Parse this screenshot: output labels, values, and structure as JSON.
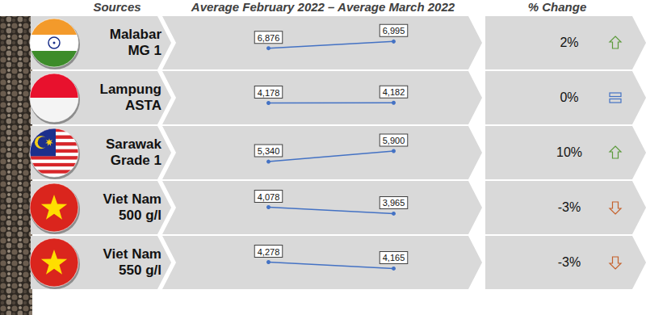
{
  "header": {
    "sources": "Sources",
    "period": "Average February 2022 – Average March 2022",
    "change": "% Change"
  },
  "chart_data": [
    {
      "type": "line",
      "title": "Malabar\nMG 1",
      "values": [
        6876,
        6995
      ],
      "value_labels": [
        "6,876",
        "6,995"
      ],
      "ylim": [
        6700,
        7100
      ],
      "color": "#4472c4",
      "data_labels": true,
      "tick_labels": false,
      "change": 2,
      "change_label": "2%"
    },
    {
      "type": "line",
      "title": "Lampung\nASTA",
      "values": [
        4178,
        4182
      ],
      "value_labels": [
        "4,178",
        "4,182"
      ],
      "ylim": [
        4000,
        4400
      ],
      "color": "#4472c4",
      "data_labels": true,
      "tick_labels": false,
      "change": 0,
      "change_label": "0%"
    },
    {
      "type": "line",
      "title": "Sarawak\nGrade 1",
      "values": [
        5340,
        5900
      ],
      "value_labels": [
        "5,340",
        "5,900"
      ],
      "ylim": [
        5000,
        6200
      ],
      "color": "#4472c4",
      "data_labels": true,
      "tick_labels": false,
      "change": 10,
      "change_label": "10%"
    },
    {
      "type": "line",
      "title": "Viet Nam\n500 g/l",
      "values": [
        4078,
        3965
      ],
      "value_labels": [
        "4,078",
        "3,965"
      ],
      "ylim": [
        3800,
        4200
      ],
      "color": "#4472c4",
      "data_labels": true,
      "tick_labels": false,
      "change": -3,
      "change_label": "-3%"
    },
    {
      "type": "line",
      "title": "Viet Nam\n550 g/l",
      "values": [
        4278,
        4165
      ],
      "value_labels": [
        "4,278",
        "4,165"
      ],
      "ylim": [
        4000,
        4400
      ],
      "color": "#4472c4",
      "data_labels": true,
      "tick_labels": false,
      "change": -3,
      "change_label": "-3%"
    }
  ]
}
